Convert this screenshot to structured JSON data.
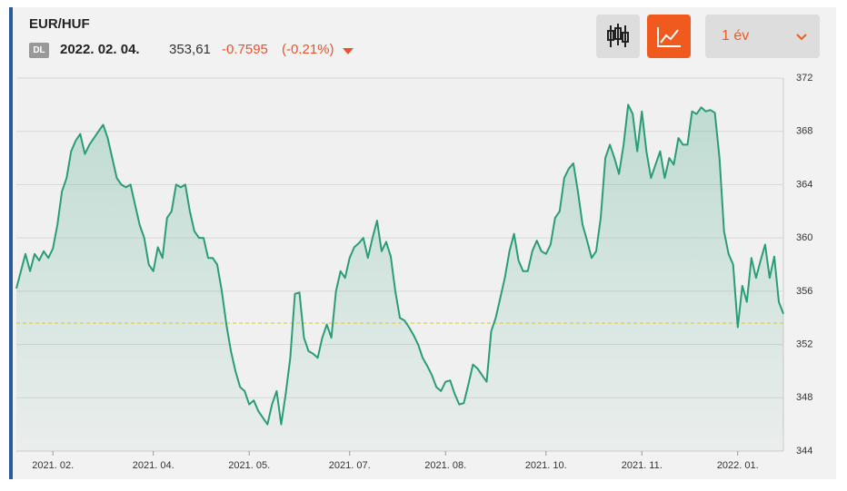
{
  "header": {
    "title": "EUR/HUF",
    "badge": "DL",
    "date": "2022. 02. 04.",
    "price": "353,61",
    "change": "-0.7595",
    "change_pct": "(-0.21%)",
    "period": "1 év"
  },
  "chart_data": {
    "type": "line",
    "color": "#2a9d78",
    "baseline": 353.61,
    "baseline_color": "#e0d020",
    "values": [
      356.2,
      357.5,
      358.8,
      357.5,
      358.8,
      358.3,
      359,
      358.5,
      359.2,
      361,
      363.5,
      364.5,
      366.5,
      367.3,
      367.8,
      366.3,
      367,
      367.5,
      368,
      368.5,
      367.5,
      366,
      364.5,
      364,
      363.8,
      364,
      362.5,
      361,
      360,
      358,
      357.5,
      359.3,
      358.5,
      361.5,
      362,
      364,
      363.8,
      364,
      362,
      360.5,
      360,
      360,
      358.5,
      358.5,
      358,
      356,
      353.5,
      351.5,
      350,
      348.8,
      348.5,
      347.5,
      347.8,
      347,
      346.5,
      346,
      347.5,
      348.5,
      346,
      348.3,
      351,
      355.8,
      355.9,
      352.5,
      351.5,
      351.3,
      351,
      352.5,
      353.5,
      352.5,
      356,
      357.5,
      357,
      358.5,
      359.3,
      359.6,
      360,
      358.5,
      360,
      361.3,
      359,
      359.7,
      358.6,
      356,
      354,
      353.8,
      353.3,
      352.7,
      352,
      351,
      350.4,
      349.7,
      348.8,
      348.5,
      349.2,
      349.3,
      348.3,
      347.5,
      347.6,
      349,
      350.5,
      350.2,
      349.7,
      349.2,
      353,
      354,
      355.5,
      357,
      359,
      360.3,
      358.3,
      357.5,
      357.5,
      359,
      359.8,
      359,
      358.8,
      359.5,
      361.5,
      362,
      364.5,
      365.2,
      365.6,
      363.5,
      361,
      359.8,
      358.5,
      359,
      361.5,
      366,
      367,
      366,
      364.8,
      367,
      370,
      369.3,
      366.5,
      369.5,
      366.5,
      364.5,
      365.5,
      366.5,
      364.5,
      366,
      365.5,
      367.5,
      367,
      367,
      369.5,
      369.3,
      369.8,
      369.5,
      369.6,
      369.4,
      366,
      360.5,
      358.8,
      358,
      353.3,
      356.4,
      355.2,
      358.5,
      357,
      358.3,
      359.5,
      357,
      358.6,
      355.2,
      354.3
    ],
    "xlim": [
      0,
      168
    ],
    "xticks": [
      {
        "value": 8,
        "label": "2021. 02."
      },
      {
        "value": 30,
        "label": "2021. 04."
      },
      {
        "value": 51,
        "label": "2021. 05."
      },
      {
        "value": 73,
        "label": "2021. 07."
      },
      {
        "value": 94,
        "label": "2021. 08."
      },
      {
        "value": 116,
        "label": "2021. 10."
      },
      {
        "value": 137,
        "label": "2021. 11."
      },
      {
        "value": 158,
        "label": "2022. 01."
      }
    ],
    "ylim": [
      344,
      372
    ],
    "yticks": [
      344,
      348,
      352,
      356,
      360,
      364,
      368,
      372
    ],
    "grid": true
  }
}
